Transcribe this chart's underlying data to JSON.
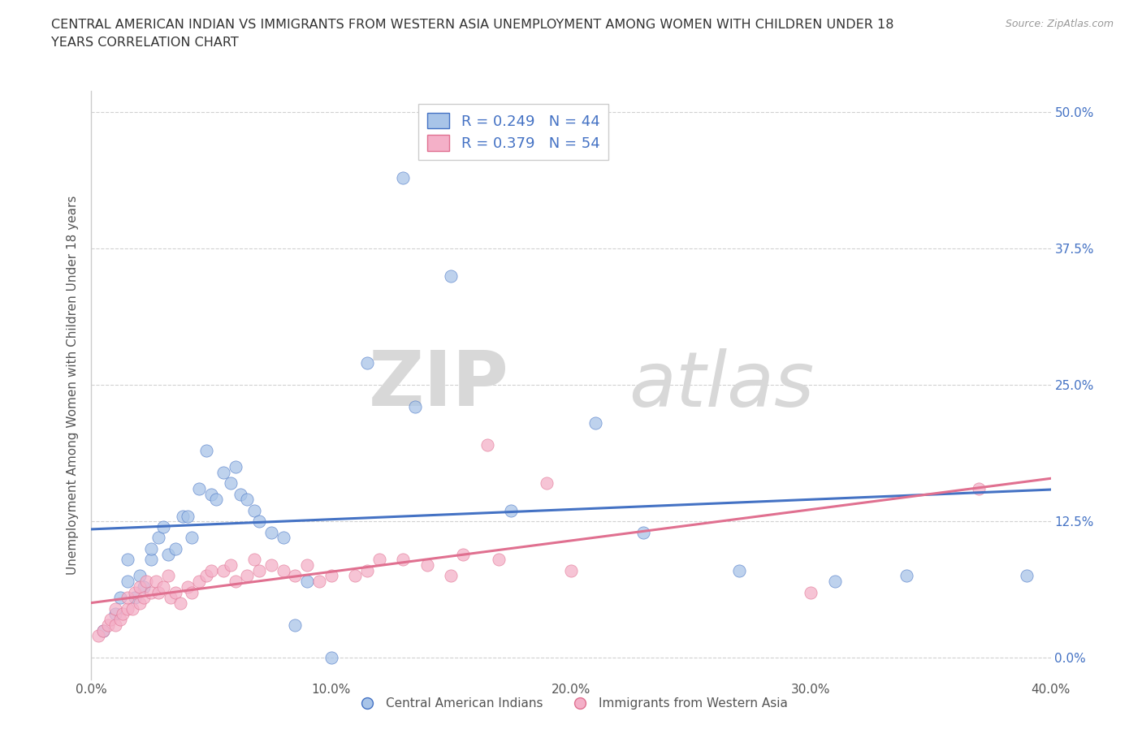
{
  "title_line1": "CENTRAL AMERICAN INDIAN VS IMMIGRANTS FROM WESTERN ASIA UNEMPLOYMENT AMONG WOMEN WITH CHILDREN UNDER 18",
  "title_line2": "YEARS CORRELATION CHART",
  "source": "Source: ZipAtlas.com",
  "ylabel": "Unemployment Among Women with Children Under 18 years",
  "xlabel_ticks": [
    "0.0%",
    "10.0%",
    "20.0%",
    "30.0%",
    "40.0%"
  ],
  "ylabel_ticks_left": [
    "",
    "12.5%",
    "25.0%",
    "37.5%",
    "50.0%"
  ],
  "ylabel_ticks_right": [
    "50.0%",
    "37.5%",
    "25.0%",
    "12.5%",
    "0.0%"
  ],
  "xlim": [
    0,
    0.4
  ],
  "ylim": [
    -0.02,
    0.52
  ],
  "legend_label1": "R = 0.249   N = 44",
  "legend_label2": "R = 0.379   N = 54",
  "color_blue": "#a8c4e8",
  "color_pink": "#f4b0c8",
  "line_color_blue": "#4472c4",
  "line_color_pink": "#e07090",
  "scatter_blue": [
    [
      0.005,
      0.025
    ],
    [
      0.01,
      0.04
    ],
    [
      0.012,
      0.055
    ],
    [
      0.015,
      0.07
    ],
    [
      0.015,
      0.09
    ],
    [
      0.018,
      0.055
    ],
    [
      0.02,
      0.075
    ],
    [
      0.022,
      0.065
    ],
    [
      0.025,
      0.09
    ],
    [
      0.025,
      0.1
    ],
    [
      0.028,
      0.11
    ],
    [
      0.03,
      0.12
    ],
    [
      0.032,
      0.095
    ],
    [
      0.035,
      0.1
    ],
    [
      0.038,
      0.13
    ],
    [
      0.04,
      0.13
    ],
    [
      0.042,
      0.11
    ],
    [
      0.045,
      0.155
    ],
    [
      0.048,
      0.19
    ],
    [
      0.05,
      0.15
    ],
    [
      0.052,
      0.145
    ],
    [
      0.055,
      0.17
    ],
    [
      0.058,
      0.16
    ],
    [
      0.06,
      0.175
    ],
    [
      0.062,
      0.15
    ],
    [
      0.065,
      0.145
    ],
    [
      0.068,
      0.135
    ],
    [
      0.07,
      0.125
    ],
    [
      0.075,
      0.115
    ],
    [
      0.08,
      0.11
    ],
    [
      0.085,
      0.03
    ],
    [
      0.09,
      0.07
    ],
    [
      0.1,
      0.0
    ],
    [
      0.115,
      0.27
    ],
    [
      0.13,
      0.44
    ],
    [
      0.135,
      0.23
    ],
    [
      0.15,
      0.35
    ],
    [
      0.175,
      0.135
    ],
    [
      0.21,
      0.215
    ],
    [
      0.23,
      0.115
    ],
    [
      0.27,
      0.08
    ],
    [
      0.31,
      0.07
    ],
    [
      0.34,
      0.075
    ],
    [
      0.39,
      0.075
    ]
  ],
  "scatter_pink": [
    [
      0.003,
      0.02
    ],
    [
      0.005,
      0.025
    ],
    [
      0.007,
      0.03
    ],
    [
      0.008,
      0.035
    ],
    [
      0.01,
      0.03
    ],
    [
      0.01,
      0.045
    ],
    [
      0.012,
      0.035
    ],
    [
      0.013,
      0.04
    ],
    [
      0.015,
      0.045
    ],
    [
      0.015,
      0.055
    ],
    [
      0.017,
      0.045
    ],
    [
      0.018,
      0.06
    ],
    [
      0.02,
      0.05
    ],
    [
      0.02,
      0.065
    ],
    [
      0.022,
      0.055
    ],
    [
      0.023,
      0.07
    ],
    [
      0.025,
      0.06
    ],
    [
      0.027,
      0.07
    ],
    [
      0.028,
      0.06
    ],
    [
      0.03,
      0.065
    ],
    [
      0.032,
      0.075
    ],
    [
      0.033,
      0.055
    ],
    [
      0.035,
      0.06
    ],
    [
      0.037,
      0.05
    ],
    [
      0.04,
      0.065
    ],
    [
      0.042,
      0.06
    ],
    [
      0.045,
      0.07
    ],
    [
      0.048,
      0.075
    ],
    [
      0.05,
      0.08
    ],
    [
      0.055,
      0.08
    ],
    [
      0.058,
      0.085
    ],
    [
      0.06,
      0.07
    ],
    [
      0.065,
      0.075
    ],
    [
      0.068,
      0.09
    ],
    [
      0.07,
      0.08
    ],
    [
      0.075,
      0.085
    ],
    [
      0.08,
      0.08
    ],
    [
      0.085,
      0.075
    ],
    [
      0.09,
      0.085
    ],
    [
      0.095,
      0.07
    ],
    [
      0.1,
      0.075
    ],
    [
      0.11,
      0.075
    ],
    [
      0.115,
      0.08
    ],
    [
      0.12,
      0.09
    ],
    [
      0.13,
      0.09
    ],
    [
      0.14,
      0.085
    ],
    [
      0.15,
      0.075
    ],
    [
      0.155,
      0.095
    ],
    [
      0.165,
      0.195
    ],
    [
      0.17,
      0.09
    ],
    [
      0.19,
      0.16
    ],
    [
      0.2,
      0.08
    ],
    [
      0.3,
      0.06
    ],
    [
      0.37,
      0.155
    ]
  ],
  "legend_cat1": "Central American Indians",
  "legend_cat2": "Immigrants from Western Asia",
  "watermark_zip": "ZIP",
  "watermark_atlas": "atlas",
  "background_color": "#ffffff",
  "grid_color": "#cccccc"
}
